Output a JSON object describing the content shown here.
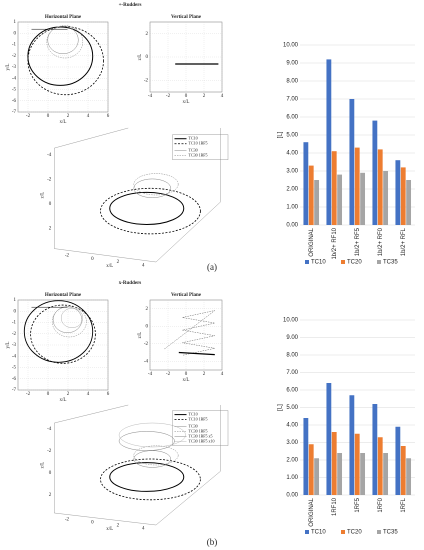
{
  "section_labels": [
    "+-Rudders",
    "x-Rudders"
  ],
  "panel_labels": [
    "(a)",
    "(b)"
  ],
  "chart_data": [
    {
      "type": "trajectory",
      "title": "Horizontal Plane",
      "xlabel": "x/L",
      "ylabel": "y/L",
      "xlim": [
        -3,
        6
      ],
      "ylim": [
        -7,
        1
      ],
      "xticks": [
        -2,
        0,
        2,
        4,
        6
      ],
      "yticks": [
        1,
        0,
        -1,
        -2,
        -3,
        -4,
        -5,
        -6,
        -7
      ],
      "grid": true
    },
    {
      "type": "trajectory",
      "title": "Vertical Plane",
      "xlabel": "x/L",
      "ylabel": "z/L",
      "xlim": [
        -4,
        4
      ],
      "ylim": [
        -3,
        3
      ],
      "xticks": [
        -4,
        -2,
        0,
        2,
        4
      ],
      "yticks": [
        -2,
        0,
        2
      ],
      "grid": true
    },
    {
      "type": "trajectory3d",
      "xlabel": "x/L",
      "zlabel": "z/L",
      "xticks": [
        -2,
        0,
        2,
        4
      ],
      "zticks": [
        -4,
        -2,
        0,
        2
      ],
      "series": [
        {
          "name": "TC10"
        },
        {
          "name": "TC10 1RF5"
        },
        {
          "name": "TC30"
        },
        {
          "name": "TC30 1RF5"
        }
      ]
    },
    {
      "type": "bar",
      "ylabel": "[L]",
      "categories": [
        "ORIGINAL",
        "1b/2+ RF10",
        "1b/2+ RF5",
        "1b/2+ RF0",
        "1b/2+ RFL"
      ],
      "ylim": [
        0,
        10
      ],
      "yticks": [
        {
          "value": 0,
          "label": "0.00"
        },
        {
          "value": 1,
          "label": "1.00"
        },
        {
          "value": 2,
          "label": "2.00"
        },
        {
          "value": 3,
          "label": "3.00"
        },
        {
          "value": 4,
          "label": "4.00"
        },
        {
          "value": 5,
          "label": "5.00"
        },
        {
          "value": 6,
          "label": "6.00"
        },
        {
          "value": 7,
          "label": "7.00"
        },
        {
          "value": 8,
          "label": "8.00"
        },
        {
          "value": 9,
          "label": "9.00"
        },
        {
          "value": 10,
          "label": "10.00"
        }
      ],
      "grid": true,
      "series": [
        {
          "name": "TC10",
          "color": "#4472c4",
          "values": [
            4.6,
            9.2,
            7.0,
            5.8,
            3.6
          ]
        },
        {
          "name": "TC20",
          "color": "#ed7d31",
          "values": [
            3.3,
            4.1,
            4.3,
            4.2,
            3.2
          ]
        },
        {
          "name": "TC35",
          "color": "#a5a5a5",
          "values": [
            2.5,
            2.8,
            2.9,
            3.0,
            2.5
          ]
        }
      ]
    },
    {
      "type": "trajectory",
      "title": "Horizontal Plane",
      "xlabel": "x/L",
      "ylabel": "y/L",
      "xlim": [
        -3,
        6
      ],
      "ylim": [
        -7,
        1
      ],
      "xticks": [
        -2,
        0,
        2,
        4,
        6
      ],
      "yticks": [
        1,
        0,
        -1,
        -2,
        -3,
        -4,
        -5,
        -6,
        -7
      ],
      "grid": true
    },
    {
      "type": "trajectory",
      "title": "Vertical Plane",
      "xlabel": "x/L",
      "ylabel": "z/L",
      "xlim": [
        -4,
        4
      ],
      "ylim": [
        -5,
        3
      ],
      "xticks": [
        -4,
        -2,
        0,
        2,
        4
      ],
      "yticks": [
        -4,
        -2,
        0,
        2
      ],
      "grid": true
    },
    {
      "type": "trajectory3d",
      "xlabel": "x/L",
      "zlabel": "z/L",
      "xticks": [
        -2,
        0,
        2,
        4
      ],
      "zticks": [
        -4,
        -2,
        0,
        2
      ],
      "series": [
        {
          "name": "TC10"
        },
        {
          "name": "TC10 1RF5"
        },
        {
          "name": "TC30"
        },
        {
          "name": "TC30 1RF5"
        },
        {
          "name": "TC30 1RF5 x5"
        },
        {
          "name": "TC30 1RF5 x10"
        }
      ]
    },
    {
      "type": "bar",
      "ylabel": "[L]",
      "categories": [
        "ORIGINAL",
        "1RF10",
        "1RF5",
        "1RF0",
        "1RFL"
      ],
      "ylim": [
        0,
        10
      ],
      "yticks": [
        {
          "value": 0,
          "label": "0.00"
        },
        {
          "value": 1,
          "label": "1.00"
        },
        {
          "value": 2,
          "label": "2.00"
        },
        {
          "value": 3,
          "label": "3.00"
        },
        {
          "value": 4,
          "label": "4.00"
        },
        {
          "value": 5,
          "label": "5.00"
        },
        {
          "value": 6,
          "label": "6.00"
        },
        {
          "value": 7,
          "label": "7.00"
        },
        {
          "value": 8,
          "label": "8.00"
        },
        {
          "value": 9,
          "label": "9.00"
        },
        {
          "value": 10,
          "label": "10.00"
        }
      ],
      "grid": true,
      "series": [
        {
          "name": "TC10",
          "color": "#4472c4",
          "values": [
            4.4,
            6.4,
            5.7,
            5.2,
            3.9
          ]
        },
        {
          "name": "TC20",
          "color": "#ed7d31",
          "values": [
            2.9,
            3.6,
            3.5,
            3.3,
            2.8
          ]
        },
        {
          "name": "TC35",
          "color": "#a5a5a5",
          "values": [
            2.1,
            2.4,
            2.4,
            2.4,
            2.1
          ]
        }
      ]
    }
  ]
}
